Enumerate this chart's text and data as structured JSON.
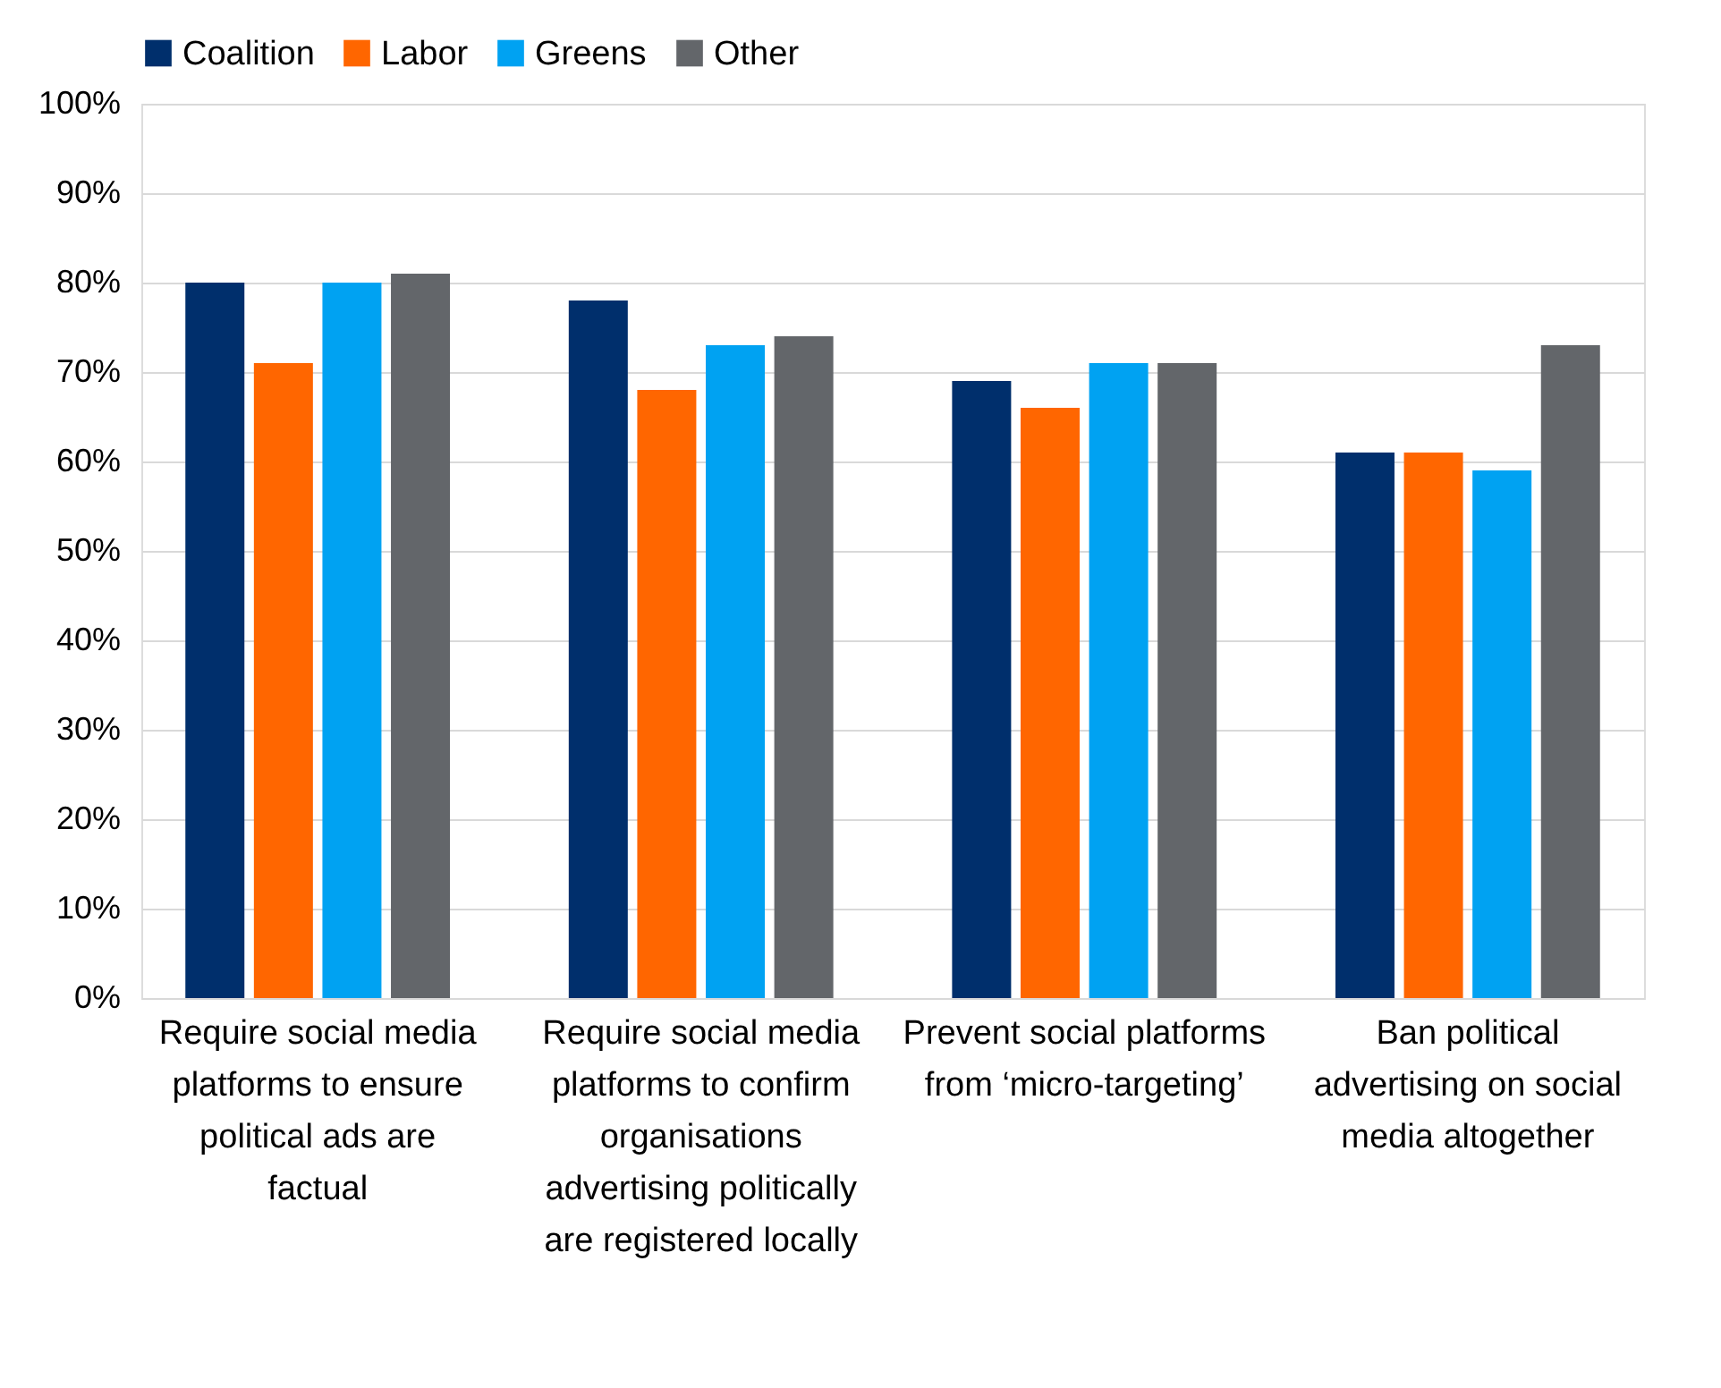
{
  "chart_data": {
    "type": "bar",
    "categories": [
      "Require social media platforms to ensure political ads are factual",
      "Require social media platforms to confirm organisations advertising politically are registered locally",
      "Prevent social platforms from ‘micro-targeting’",
      "Ban political advertising on social media altogether"
    ],
    "series": [
      {
        "name": "Coalition",
        "color": "#002f6c",
        "values": [
          80,
          78,
          69,
          61
        ]
      },
      {
        "name": "Labor",
        "color": "#ff6600",
        "values": [
          71,
          68,
          66,
          61
        ]
      },
      {
        "name": "Greens",
        "color": "#00a2f2",
        "values": [
          80,
          73,
          71,
          59
        ]
      },
      {
        "name": "Other",
        "color": "#63666a",
        "values": [
          81,
          74,
          71,
          73
        ]
      }
    ],
    "ylim": [
      0,
      100
    ],
    "yticks": [
      {
        "value": 0,
        "label": "0%"
      },
      {
        "value": 10,
        "label": "10%"
      },
      {
        "value": 20,
        "label": "20%"
      },
      {
        "value": 30,
        "label": "30%"
      },
      {
        "value": 40,
        "label": "40%"
      },
      {
        "value": 50,
        "label": "50%"
      },
      {
        "value": 60,
        "label": "60%"
      },
      {
        "value": 70,
        "label": "70%"
      },
      {
        "value": 80,
        "label": "80%"
      },
      {
        "value": 90,
        "label": "90%"
      },
      {
        "value": 100,
        "label": "100%"
      }
    ],
    "grid": "y",
    "legend": "top"
  }
}
